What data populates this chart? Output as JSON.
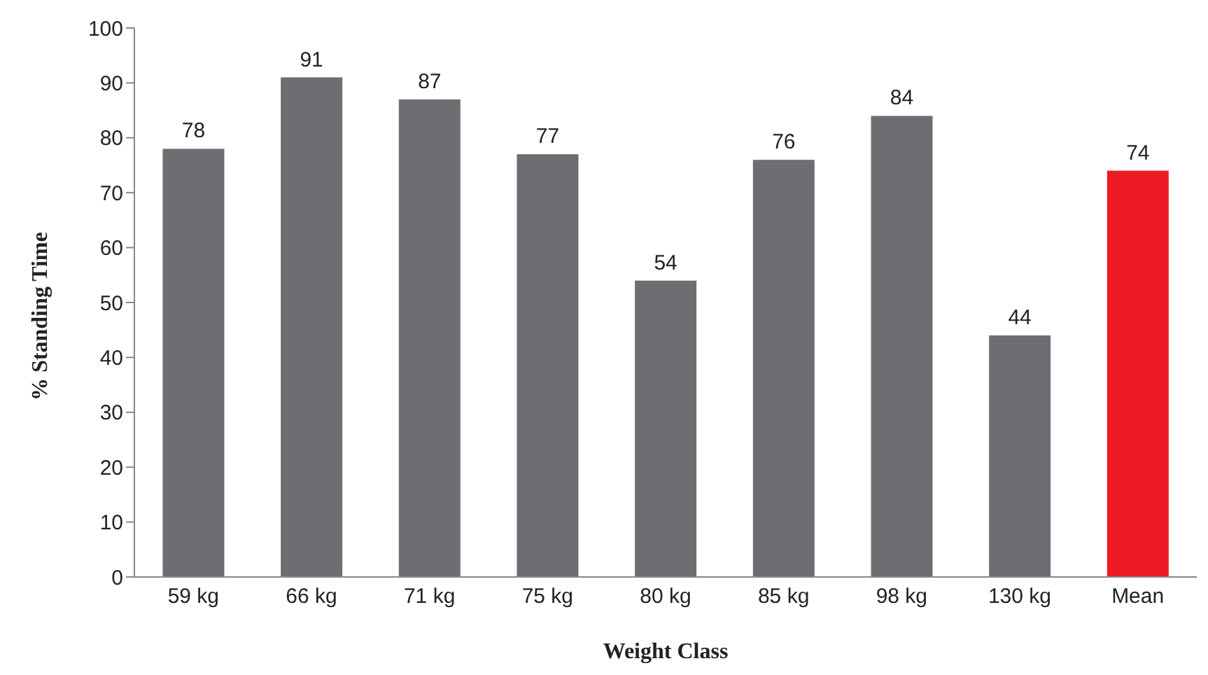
{
  "chart_data": {
    "type": "bar",
    "xlabel": "Weight Class",
    "ylabel": "% Standing Time",
    "categories": [
      "59 kg",
      "66 kg",
      "71 kg",
      "75 kg",
      "80 kg",
      "85 kg",
      "98 kg",
      "130 kg",
      "Mean"
    ],
    "values": [
      78,
      91,
      87,
      77,
      54,
      76,
      84,
      44,
      74
    ],
    "colors": [
      "#6d6e71",
      "#6d6e71",
      "#6d6e71",
      "#6d6e71",
      "#6d6e71",
      "#6d6e71",
      "#6d6e71",
      "#6d6e71",
      "#ed1c24"
    ],
    "ylim": [
      0,
      100
    ],
    "yticks": [
      0,
      10,
      20,
      30,
      40,
      50,
      60,
      70,
      80,
      90,
      100
    ],
    "grid": false,
    "data_labels": true,
    "legend": false
  }
}
